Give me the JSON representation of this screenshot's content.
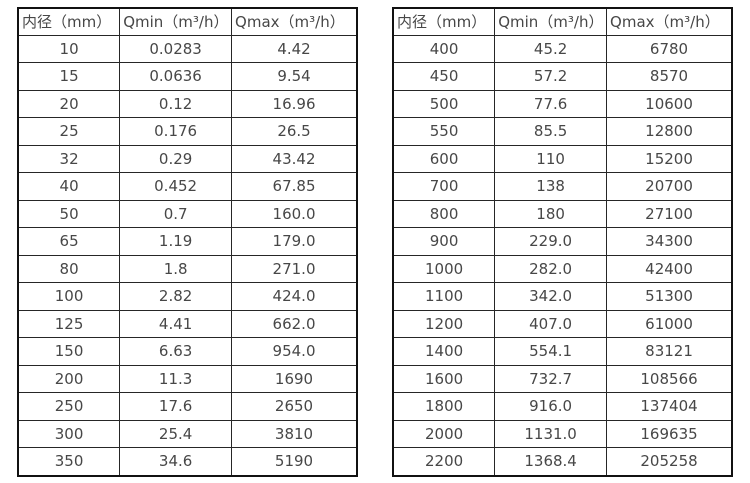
{
  "page": {
    "background_color": "#ffffff",
    "text_color": "#474747",
    "border_color": "#262626"
  },
  "chart_data": [
    {
      "type": "table",
      "title": "",
      "headers": [
        "内径（mm）",
        "Qmin（m³/h）",
        "Qmax（m³/h）"
      ],
      "rows": [
        [
          "10",
          "0.0283",
          "4.42"
        ],
        [
          "15",
          "0.0636",
          "9.54"
        ],
        [
          "20",
          "0.12",
          "16.96"
        ],
        [
          "25",
          "0.176",
          "26.5"
        ],
        [
          "32",
          "0.29",
          "43.42"
        ],
        [
          "40",
          "0.452",
          "67.85"
        ],
        [
          "50",
          "0.7",
          "160.0"
        ],
        [
          "65",
          "1.19",
          "179.0"
        ],
        [
          "80",
          "1.8",
          "271.0"
        ],
        [
          "100",
          "2.82",
          "424.0"
        ],
        [
          "125",
          "4.41",
          "662.0"
        ],
        [
          "150",
          "6.63",
          "954.0"
        ],
        [
          "200",
          "11.3",
          "1690"
        ],
        [
          "250",
          "17.6",
          "2650"
        ],
        [
          "300",
          "25.4",
          "3810"
        ],
        [
          "350",
          "34.6",
          "5190"
        ]
      ]
    },
    {
      "type": "table",
      "title": "",
      "headers": [
        "内径（mm）",
        "Qmin（m³/h）",
        "Qmax（m³/h）"
      ],
      "rows": [
        [
          "400",
          "45.2",
          "6780"
        ],
        [
          "450",
          "57.2",
          "8570"
        ],
        [
          "500",
          "77.6",
          "10600"
        ],
        [
          "550",
          "85.5",
          "12800"
        ],
        [
          "600",
          "110",
          "15200"
        ],
        [
          "700",
          "138",
          "20700"
        ],
        [
          "800",
          "180",
          "27100"
        ],
        [
          "900",
          "229.0",
          "34300"
        ],
        [
          "1000",
          "282.0",
          "42400"
        ],
        [
          "1100",
          "342.0",
          "51300"
        ],
        [
          "1200",
          "407.0",
          "61000"
        ],
        [
          "1400",
          "554.1",
          "83121"
        ],
        [
          "1600",
          "732.7",
          "108566"
        ],
        [
          "1800",
          "916.0",
          "137404"
        ],
        [
          "2000",
          "1131.0",
          "169635"
        ],
        [
          "2200",
          "1368.4",
          "205258"
        ]
      ]
    }
  ]
}
